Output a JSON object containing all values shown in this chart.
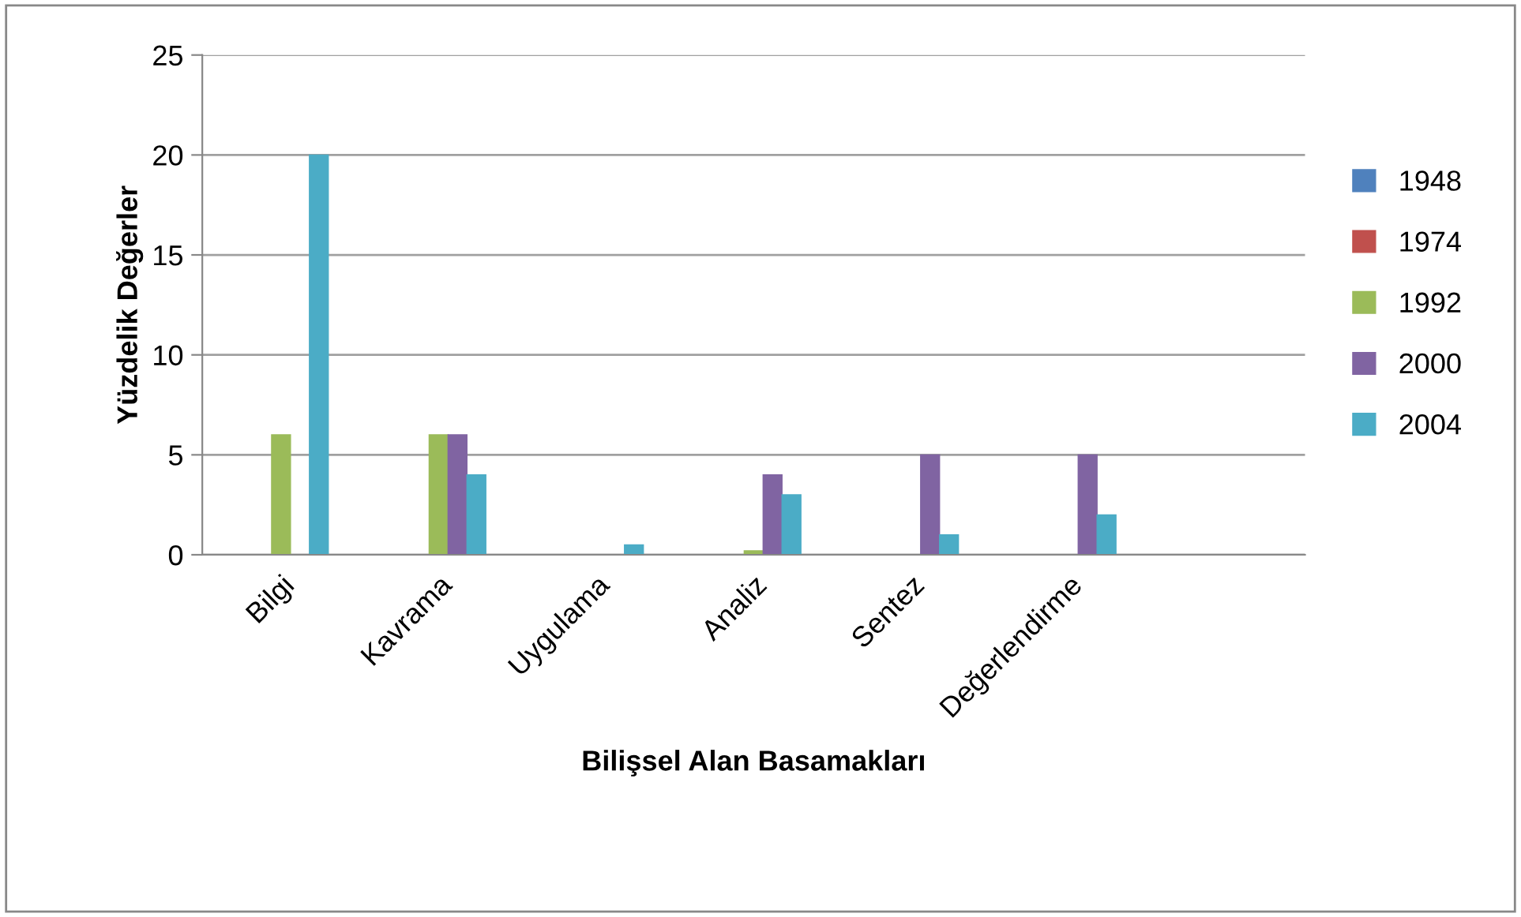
{
  "chart_data": {
    "type": "bar",
    "xlabel": "Bilişsel Alan Basamakları",
    "ylabel": "Yüzdelik Değerler",
    "categories": [
      "Bilgi",
      "Kavrama",
      "Uygulama",
      "Analiz",
      "Sentez",
      "Değerlendirme",
      null
    ],
    "series": [
      {
        "name": "1948",
        "color": "#4f81bd",
        "values": [
          0,
          0,
          0,
          0,
          0,
          0,
          0
        ]
      },
      {
        "name": "1974",
        "color": "#c0504d",
        "values": [
          0,
          0,
          0,
          0,
          0,
          0,
          0
        ]
      },
      {
        "name": "1992",
        "color": "#9bbb59",
        "values": [
          6,
          6,
          0,
          0.2,
          0,
          0,
          0
        ]
      },
      {
        "name": "2000",
        "color": "#8064a2",
        "values": [
          0,
          6,
          0,
          4,
          5,
          5,
          0
        ]
      },
      {
        "name": "2004",
        "color": "#4bacc6",
        "values": [
          20,
          4,
          0.5,
          3,
          1,
          2,
          0
        ]
      }
    ],
    "ylim": [
      0,
      25
    ],
    "yticks": [
      0,
      5,
      10,
      15,
      20,
      25
    ],
    "grid": "y",
    "legend": "right"
  }
}
